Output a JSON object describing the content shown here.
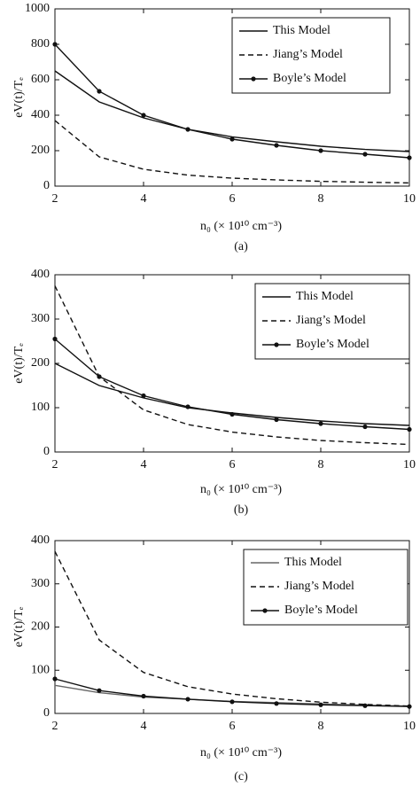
{
  "chart_data": [
    {
      "type": "line",
      "caption": "(a)",
      "xlabel": "n₀ (× 10¹⁰ cm⁻³)",
      "ylabel": "eV(t)/Tₑ",
      "xlim": [
        2,
        10
      ],
      "ylim": [
        0,
        1000
      ],
      "xticks": [
        2,
        4,
        6,
        8,
        10
      ],
      "yticks": [
        0,
        200,
        400,
        600,
        800,
        1000
      ],
      "x": [
        2,
        3,
        4,
        5,
        6,
        7,
        8,
        9,
        10
      ],
      "series": [
        {
          "name": "This Model",
          "color": "#111111",
          "style": "solid",
          "marker": false,
          "values": [
            650,
            475,
            385,
            320,
            278,
            250,
            225,
            207,
            195
          ]
        },
        {
          "name": "Jiang’s Model",
          "color": "#111111",
          "style": "dashed",
          "marker": false,
          "values": [
            370,
            165,
            95,
            62,
            45,
            35,
            27,
            22,
            18
          ]
        },
        {
          "name": "Boyle’s Model",
          "color": "#111111",
          "style": "solid",
          "marker": true,
          "values": [
            800,
            535,
            400,
            320,
            265,
            230,
            200,
            180,
            160
          ]
        }
      ]
    },
    {
      "type": "line",
      "caption": "(b)",
      "xlabel": "n₀ (× 10¹⁰ cm⁻³)",
      "ylabel": "eV(t)/Tₑ",
      "xlim": [
        2,
        10
      ],
      "ylim": [
        0,
        400
      ],
      "xticks": [
        2,
        4,
        6,
        8,
        10
      ],
      "yticks": [
        0,
        100,
        200,
        300,
        400
      ],
      "x": [
        2,
        3,
        4,
        5,
        6,
        7,
        8,
        9,
        10
      ],
      "series": [
        {
          "name": "This Model",
          "color": "#111111",
          "style": "solid",
          "marker": false,
          "values": [
            200,
            150,
            122,
            100,
            88,
            78,
            70,
            64,
            60
          ]
        },
        {
          "name": "Jiang’s Model",
          "color": "#111111",
          "style": "dashed",
          "marker": false,
          "values": [
            375,
            170,
            95,
            62,
            45,
            34,
            26,
            21,
            17
          ]
        },
        {
          "name": "Boyle’s Model",
          "color": "#111111",
          "style": "solid",
          "marker": true,
          "values": [
            255,
            170,
            127,
            102,
            85,
            73,
            64,
            57,
            51
          ]
        }
      ]
    },
    {
      "type": "line",
      "caption": "(c)",
      "xlabel": "n₀ (× 10¹⁰ cm⁻³)",
      "ylabel": "eV(t)/Tₑ",
      "xlim": [
        2,
        10
      ],
      "ylim": [
        0,
        400
      ],
      "xticks": [
        2,
        4,
        6,
        8,
        10
      ],
      "yticks": [
        0,
        100,
        200,
        300,
        400
      ],
      "x": [
        2,
        3,
        4,
        5,
        6,
        7,
        8,
        9,
        10
      ],
      "series": [
        {
          "name": "This Model",
          "color": "#666666",
          "style": "solid",
          "marker": false,
          "values": [
            65,
            48,
            38,
            33,
            28,
            25,
            22,
            19,
            17
          ]
        },
        {
          "name": "Jiang’s Model",
          "color": "#111111",
          "style": "dashed",
          "marker": false,
          "values": [
            375,
            170,
            95,
            62,
            45,
            34,
            26,
            21,
            17
          ]
        },
        {
          "name": "Boyle’s Model",
          "color": "#111111",
          "style": "solid",
          "marker": true,
          "values": [
            80,
            53,
            40,
            33,
            27,
            23,
            20,
            18,
            16
          ]
        }
      ]
    }
  ]
}
